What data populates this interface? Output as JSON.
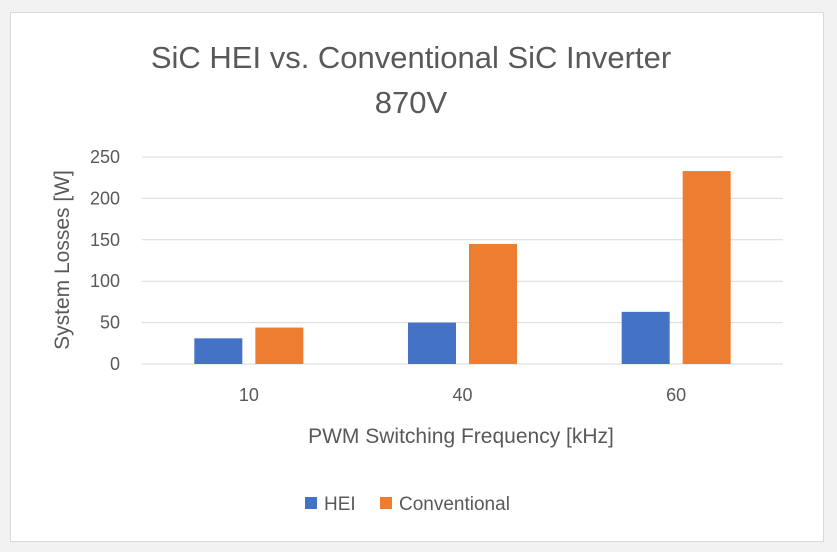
{
  "chart_data": {
    "type": "bar",
    "title": "SiC HEI vs. Conventional SiC Inverter",
    "subtitle": "870V",
    "xlabel": "PWM Switching Frequency [kHz]",
    "ylabel": "System Losses [W]",
    "categories": [
      "10",
      "40",
      "60"
    ],
    "series": [
      {
        "name": "HEI",
        "color": "#4472c4",
        "values": [
          31,
          50,
          63
        ]
      },
      {
        "name": "Conventional",
        "color": "#ed7d31",
        "values": [
          44,
          145,
          233
        ]
      }
    ],
    "ylim": [
      0,
      250
    ],
    "yticks": [
      0,
      50,
      100,
      150,
      200,
      250
    ],
    "grid": true,
    "legend_position": "bottom"
  }
}
